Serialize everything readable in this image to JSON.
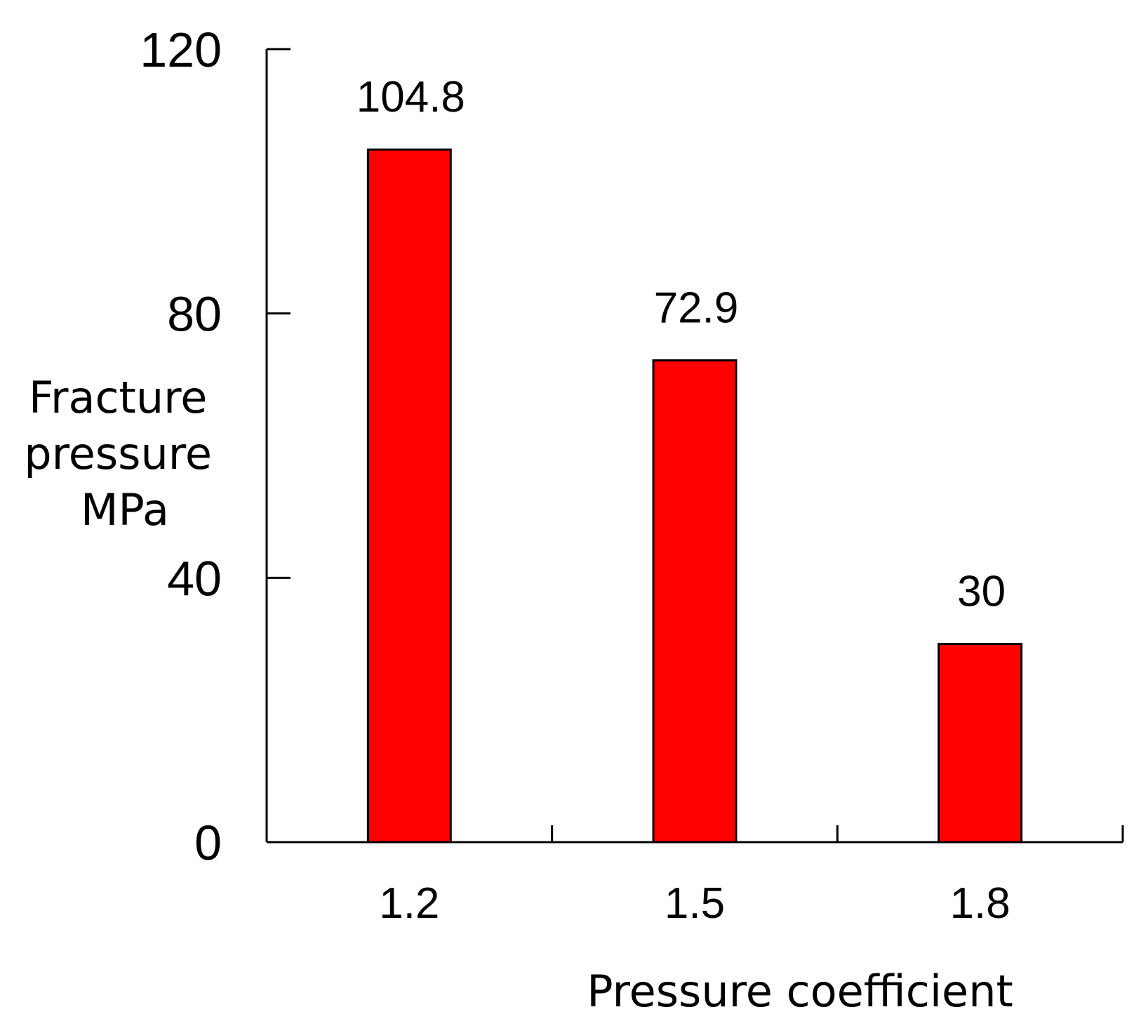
{
  "chart_data": {
    "type": "bar",
    "categories": [
      "1.2",
      "1.5",
      "1.8"
    ],
    "values": [
      104.8,
      72.9,
      30
    ],
    "data_labels": [
      "104.8",
      "72.9",
      "30"
    ],
    "xlabel": "Pressure coefficient",
    "ylabel_lines": [
      "Fracture",
      "pressure",
      "MPa"
    ],
    "ylim": [
      0,
      120
    ],
    "yticks": [
      "0",
      "40",
      "80",
      "120"
    ],
    "bar_color": "#ff0000",
    "bar_stroke": "#000000",
    "grid": false,
    "legend": "none"
  }
}
